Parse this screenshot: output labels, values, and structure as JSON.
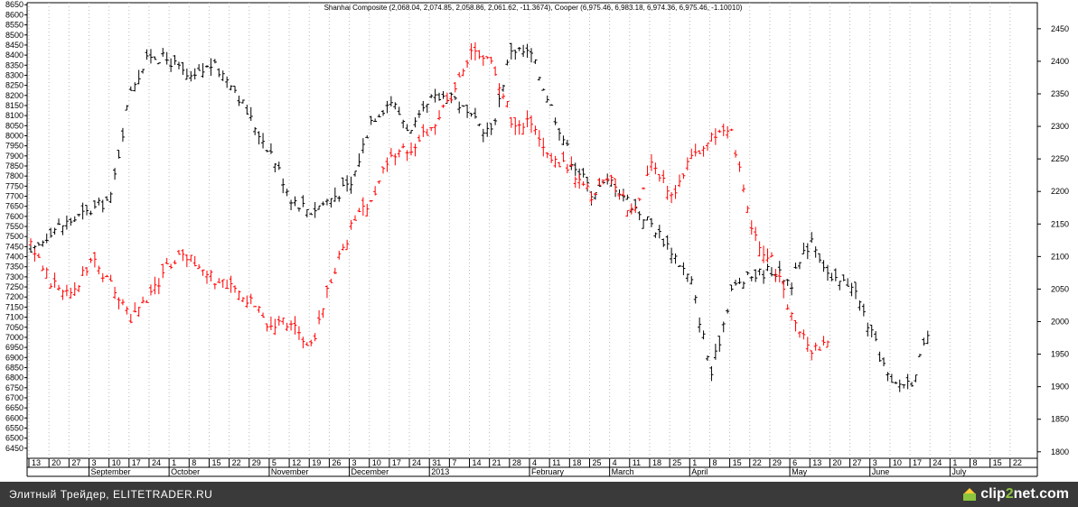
{
  "footer": {
    "caption": "Элитный Трейдер, ELITETRADER.RU",
    "brand_prefix": "clip",
    "brand_accent": "2",
    "brand_suffix": "net.com"
  },
  "chart_data": {
    "type": "bar",
    "subtype": "ohlc",
    "title": "Shanhai Composite (2,068.04, 2,074.85, 2,058.86, 2,061.62, -11.3674), Cooper (6,975.46, 6,983.18, 6,974.36, 6,975.46, -1.10010)",
    "grid": true,
    "legend": "none",
    "left_axis": {
      "range": [
        6400,
        8660
      ],
      "ticks": [
        6450,
        6500,
        6550,
        6600,
        6650,
        6700,
        6750,
        6800,
        6850,
        6900,
        6950,
        7000,
        7050,
        7100,
        7150,
        7200,
        7250,
        7300,
        7350,
        7400,
        7450,
        7500,
        7550,
        7600,
        7650,
        7700,
        7750,
        7800,
        7850,
        7900,
        7950,
        8000,
        8050,
        8100,
        8150,
        8200,
        8250,
        8300,
        8350,
        8400,
        8450,
        8500,
        8550,
        8600,
        8650
      ]
    },
    "right_axis": {
      "range": [
        1790,
        2490
      ],
      "ticks": [
        1800,
        1850,
        1900,
        1950,
        2000,
        2050,
        2100,
        2150,
        2200,
        2250,
        2300,
        2350,
        2400,
        2450
      ]
    },
    "x_day_labels": [
      "13",
      "20",
      "27",
      "3",
      "10",
      "17",
      "24",
      "1",
      "8",
      "15",
      "22",
      "29",
      "5",
      "12",
      "19",
      "26",
      "3",
      "10",
      "17",
      "24",
      "31",
      "7",
      "14",
      "21",
      "28",
      "4",
      "11",
      "18",
      "25",
      "4",
      "11",
      "18",
      "25",
      "1",
      "8",
      "15",
      "22",
      "29",
      "6",
      "13",
      "20",
      "27",
      "3",
      "10",
      "17",
      "24",
      "1",
      "8",
      "15",
      "22"
    ],
    "x_month_labels": [
      {
        "label": "September",
        "at": 3
      },
      {
        "label": "October",
        "at": 7
      },
      {
        "label": "November",
        "at": 12
      },
      {
        "label": "December",
        "at": 16
      },
      {
        "label": "2013",
        "at": 20
      },
      {
        "label": "February",
        "at": 25
      },
      {
        "label": "March",
        "at": 29
      },
      {
        "label": "April",
        "at": 33
      },
      {
        "label": "May",
        "at": 38
      },
      {
        "label": "June",
        "at": 42
      },
      {
        "label": "July",
        "at": 46
      }
    ],
    "series": [
      {
        "name": "Shanhai Composite",
        "axis": "right",
        "color": "#000000",
        "weekly_close": [
          2100,
          2140,
          2155,
          2170,
          2190,
          2360,
          2410,
          2400,
          2370,
          2395,
          2370,
          2310,
          2260,
          2190,
          2170,
          2190,
          2210,
          2310,
          2340,
          2290,
          2340,
          2350,
          2310,
          2290,
          2420,
          2410,
          2330,
          2250,
          2200,
          2215,
          2180,
          2150,
          2110,
          2060,
          1920,
          2050,
          2070,
          2080,
          2060,
          2130,
          2060,
          2060,
          1980,
          1900,
          1910,
          1990
        ]
      },
      {
        "name": "Cooper",
        "axis": "left",
        "color": "#ff0000",
        "weekly_close": [
          7450,
          7280,
          7200,
          7390,
          7250,
          7100,
          7220,
          7370,
          7400,
          7300,
          7250,
          7180,
          7050,
          7080,
          6950,
          7300,
          7540,
          7690,
          7900,
          7940,
          8050,
          8180,
          8440,
          8380,
          8080,
          8060,
          7870,
          7830,
          7700,
          7790,
          7610,
          7850,
          7710,
          7880,
          8000,
          8020,
          7520,
          7380,
          7120,
          6940,
          6960
        ]
      }
    ]
  }
}
